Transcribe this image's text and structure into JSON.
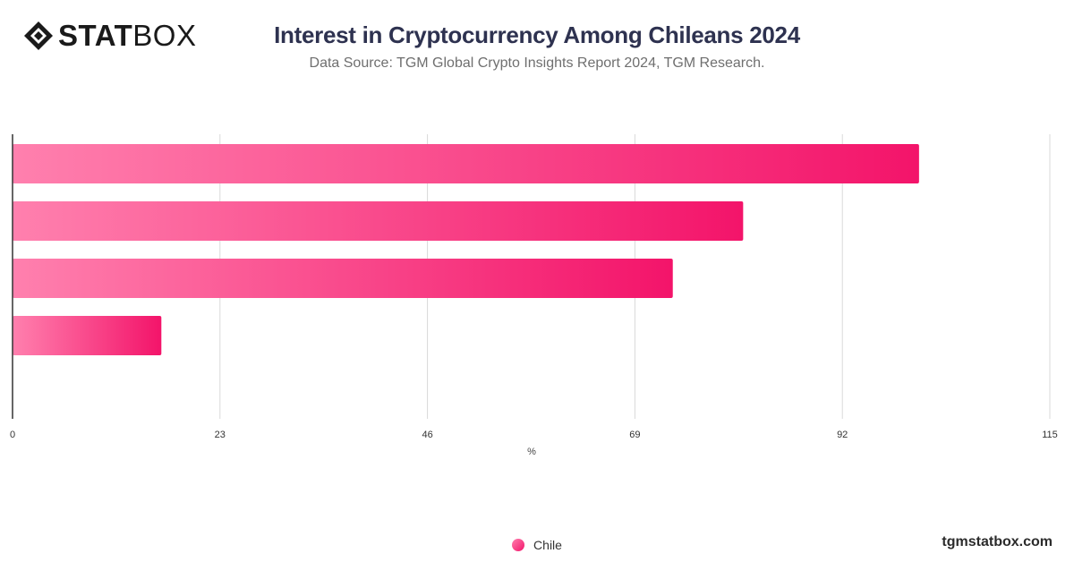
{
  "brand": {
    "logo_bold": "STAT",
    "logo_light": "BOX",
    "site": "tgmstatbox.com"
  },
  "header": {
    "title": "Interest in Cryptocurrency Among Chileans 2024",
    "subtitle": "Data Source: TGM Global Crypto Insights Report 2024, TGM Research."
  },
  "colors": {
    "bar_start": "#ff80ae",
    "bar_end": "#f3146a",
    "grid": "#d9d9d9",
    "axis": "#333333"
  },
  "chart_data": {
    "type": "bar",
    "orientation": "horizontal",
    "categories": [
      "",
      "",
      "",
      ""
    ],
    "series": [
      {
        "name": "Chile",
        "values": [
          100.5,
          81,
          73.2,
          16.5
        ]
      }
    ],
    "xlabel": "%",
    "ylabel": "",
    "xlim": [
      0,
      115
    ],
    "xticks": [
      0,
      23,
      46,
      69,
      92,
      115
    ],
    "grid": "vertical",
    "legend": "bottom-center"
  }
}
